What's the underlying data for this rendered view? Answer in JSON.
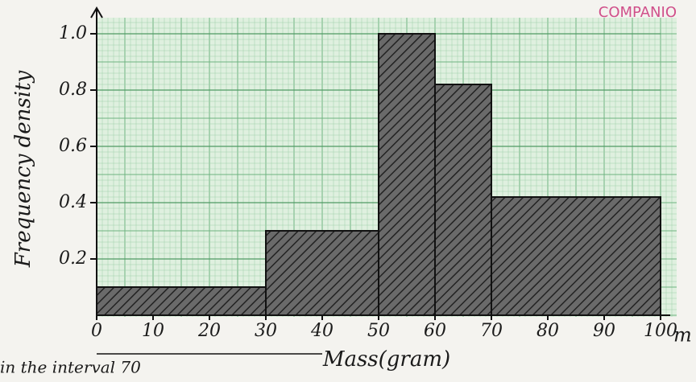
{
  "chart_data": {
    "type": "histogram",
    "x_label": "Mass(gram)",
    "y_label": "Frequency density",
    "bins": [
      0,
      30,
      50,
      60,
      70,
      100
    ],
    "values": [
      0.1,
      0.3,
      1.0,
      0.82,
      0.42
    ],
    "color": "#3a3a3a",
    "xlim": [
      0,
      100
    ],
    "ylim": [
      0,
      1.05
    ],
    "xticks": [
      0,
      10,
      20,
      30,
      40,
      50,
      60,
      70,
      80,
      90,
      100
    ],
    "yticks": [
      0.2,
      0.4,
      0.6,
      0.8,
      {
        "value": 1,
        "label": "1.0"
      }
    ],
    "grid": true,
    "x_unit": "m",
    "brand": "COMPANIO",
    "note": "in the interval 70"
  }
}
